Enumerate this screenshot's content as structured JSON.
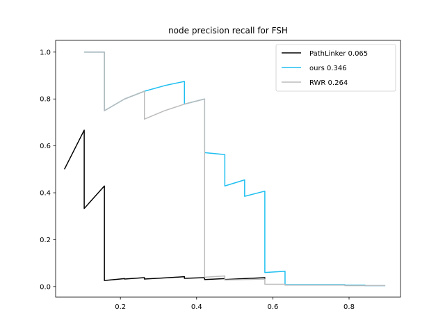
{
  "chart_data": {
    "type": "line",
    "title": "node precision recall for FSH",
    "xlabel": "",
    "ylabel": "",
    "xlim": [
      0.03,
      0.935
    ],
    "ylim": [
      -0.045,
      1.05
    ],
    "xticks": [
      0.2,
      0.4,
      0.6,
      0.8
    ],
    "xtick_labels": [
      "0.2",
      "0.4",
      "0.6",
      "0.8"
    ],
    "yticks": [
      0.0,
      0.2,
      0.4,
      0.6,
      0.8,
      1.0
    ],
    "ytick_labels": [
      "0.0",
      "0.2",
      "0.4",
      "0.6",
      "0.8",
      "1.0"
    ],
    "grid": false,
    "legend_position": "top-right",
    "series": [
      {
        "name": "PathLinker 0.065",
        "color": "#000000",
        "points": [
          [
            0.053,
            0.5
          ],
          [
            0.105,
            0.667
          ],
          [
            0.105,
            0.333
          ],
          [
            0.158,
            0.429
          ],
          [
            0.158,
            0.026
          ],
          [
            0.211,
            0.034
          ],
          [
            0.211,
            0.032
          ],
          [
            0.263,
            0.038
          ],
          [
            0.263,
            0.032
          ],
          [
            0.316,
            0.037
          ],
          [
            0.368,
            0.042
          ],
          [
            0.368,
            0.035
          ],
          [
            0.421,
            0.038
          ],
          [
            0.421,
            0.03
          ],
          [
            0.474,
            0.034
          ],
          [
            0.474,
            0.03
          ],
          [
            0.526,
            0.034
          ],
          [
            0.579,
            0.038
          ],
          [
            0.579,
            0.033
          ]
        ]
      },
      {
        "name": "ours 0.346",
        "color": "#1ebff0",
        "points": [
          [
            0.105,
            1.0
          ],
          [
            0.158,
            1.0
          ],
          [
            0.158,
            0.75
          ],
          [
            0.211,
            0.8
          ],
          [
            0.263,
            0.833
          ],
          [
            0.316,
            0.857
          ],
          [
            0.368,
            0.875
          ],
          [
            0.368,
            0.778
          ],
          [
            0.421,
            0.8
          ],
          [
            0.421,
            0.571
          ],
          [
            0.474,
            0.563
          ],
          [
            0.474,
            0.429
          ],
          [
            0.526,
            0.455
          ],
          [
            0.526,
            0.385
          ],
          [
            0.579,
            0.407
          ],
          [
            0.579,
            0.06
          ],
          [
            0.632,
            0.065
          ],
          [
            0.632,
            0.008
          ],
          [
            0.789,
            0.008
          ],
          [
            0.789,
            0.006
          ],
          [
            0.842,
            0.006
          ],
          [
            0.842,
            0.004
          ],
          [
            0.895,
            0.004
          ]
        ]
      },
      {
        "name": "RWR 0.264",
        "color": "#bbbbbb",
        "points": [
          [
            0.105,
            1.0
          ],
          [
            0.158,
            1.0
          ],
          [
            0.158,
            0.75
          ],
          [
            0.211,
            0.8
          ],
          [
            0.263,
            0.833
          ],
          [
            0.263,
            0.714
          ],
          [
            0.316,
            0.75
          ],
          [
            0.368,
            0.778
          ],
          [
            0.421,
            0.8
          ],
          [
            0.421,
            0.04
          ],
          [
            0.474,
            0.045
          ],
          [
            0.474,
            0.028
          ],
          [
            0.526,
            0.03
          ],
          [
            0.579,
            0.032
          ],
          [
            0.579,
            0.01
          ],
          [
            0.632,
            0.01
          ],
          [
            0.632,
            0.006
          ],
          [
            0.737,
            0.006
          ],
          [
            0.789,
            0.006
          ],
          [
            0.789,
            0.004
          ],
          [
            0.895,
            0.004
          ]
        ]
      }
    ]
  }
}
